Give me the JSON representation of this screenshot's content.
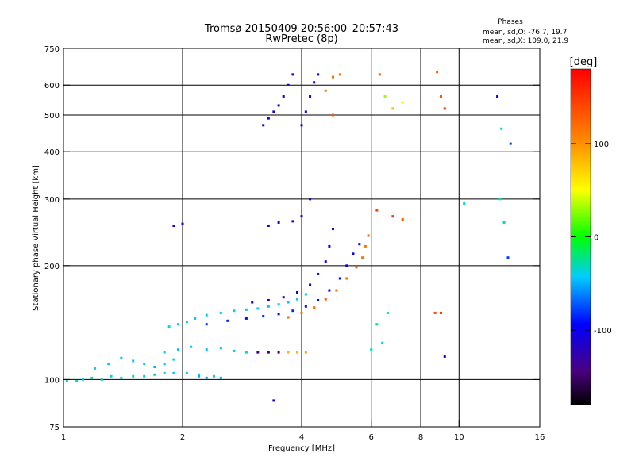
{
  "chart_data": {
    "type": "scatter",
    "title": "Tromsø 20150409 20:56:00–20:57:43",
    "subtitle": "RwPretec (8p)",
    "xlabel": "Frequency [MHz]",
    "ylabel": "Stationary phase Virtual Height [km]",
    "x_scale": "log",
    "y_scale": "log",
    "xlim": [
      1,
      16
    ],
    "ylim": [
      75,
      750
    ],
    "x_ticks": [
      1,
      2,
      4,
      6,
      8,
      10,
      16
    ],
    "x_tick_labels": [
      "1",
      "2",
      "4",
      "6",
      "8",
      "10",
      "16"
    ],
    "x_grid_lines": [
      2,
      4,
      6,
      8,
      10
    ],
    "y_ticks": [
      75,
      100,
      200,
      300,
      400,
      500,
      600,
      750
    ],
    "y_tick_labels": [
      "75",
      "100",
      "200",
      "300",
      "400",
      "500",
      "600",
      "750"
    ],
    "y_grid_lines": [
      100,
      200,
      300,
      400,
      500,
      600
    ],
    "grid": true,
    "info": {
      "heading": "Phases",
      "line1": "mean, sd,O: -76.7, 19.7",
      "line2": "mean, sd,X: 109.0, 21.9"
    },
    "colorbar": {
      "label": "[deg]",
      "min": -180,
      "max": 180,
      "ticks": [
        100,
        0,
        -100
      ],
      "tick_labels": [
        "100",
        "0",
        "-100"
      ],
      "colormap": "rainbow"
    },
    "series": [
      {
        "values": [
          [
            1.02,
            99,
            -35
          ],
          [
            1.08,
            99,
            -30
          ],
          [
            1.12,
            100,
            -40
          ],
          [
            1.18,
            101,
            -35
          ],
          [
            1.25,
            100,
            -30
          ],
          [
            1.32,
            102,
            -40
          ],
          [
            1.4,
            101,
            -35
          ],
          [
            1.5,
            102,
            -30
          ],
          [
            1.6,
            102,
            -40
          ],
          [
            1.7,
            103,
            -35
          ],
          [
            1.8,
            104,
            -35
          ],
          [
            1.9,
            104,
            -40
          ],
          [
            2.05,
            104,
            -35
          ],
          [
            2.2,
            103,
            -40
          ],
          [
            2.4,
            102,
            -35
          ],
          [
            1.2,
            107,
            -40
          ],
          [
            1.3,
            110,
            -45
          ],
          [
            1.4,
            114,
            -40
          ],
          [
            1.5,
            112,
            -45
          ],
          [
            1.6,
            110,
            -40
          ],
          [
            1.7,
            108,
            -50
          ],
          [
            1.8,
            110,
            -45
          ],
          [
            1.9,
            113,
            -40
          ],
          [
            1.85,
            138,
            -40
          ],
          [
            1.95,
            140,
            -45
          ],
          [
            2.05,
            142,
            -40
          ],
          [
            2.15,
            145,
            -45
          ],
          [
            2.3,
            148,
            -40
          ],
          [
            2.5,
            150,
            -45
          ],
          [
            2.7,
            152,
            -40
          ],
          [
            2.9,
            153,
            -45
          ],
          [
            3.1,
            154,
            -40
          ],
          [
            3.3,
            156,
            -45
          ],
          [
            3.5,
            158,
            -40
          ],
          [
            3.7,
            160,
            -45
          ],
          [
            3.9,
            163,
            -40
          ],
          [
            4.1,
            168,
            -45
          ],
          [
            1.8,
            118,
            -40
          ],
          [
            1.95,
            120,
            -45
          ],
          [
            2.1,
            122,
            -40
          ],
          [
            2.3,
            120,
            -45
          ],
          [
            2.5,
            121,
            -40
          ],
          [
            2.7,
            119,
            -45
          ],
          [
            2.9,
            118,
            -40
          ],
          [
            2.2,
            102,
            -50
          ],
          [
            2.3,
            101,
            -55
          ],
          [
            2.5,
            101,
            -55
          ],
          [
            2.3,
            140,
            -80
          ],
          [
            2.6,
            143,
            -85
          ],
          [
            2.9,
            145,
            -90
          ],
          [
            3.2,
            147,
            -85
          ],
          [
            3.5,
            149,
            -90
          ],
          [
            3.8,
            152,
            -85
          ],
          [
            4.1,
            156,
            -90
          ],
          [
            4.4,
            162,
            -95
          ],
          [
            4.7,
            172,
            -100
          ],
          [
            5.0,
            185,
            -95
          ],
          [
            5.2,
            200,
            -100
          ],
          [
            5.4,
            215,
            -100
          ],
          [
            5.6,
            228,
            -95
          ],
          [
            3.0,
            160,
            -100
          ],
          [
            3.3,
            162,
            -100
          ],
          [
            3.6,
            165,
            -110
          ],
          [
            3.9,
            170,
            -100
          ],
          [
            4.2,
            178,
            -110
          ],
          [
            4.4,
            190,
            -100
          ],
          [
            4.6,
            205,
            -105
          ],
          [
            4.7,
            225,
            -100
          ],
          [
            4.8,
            250,
            -110
          ],
          [
            3.3,
            255,
            -110
          ],
          [
            3.5,
            260,
            -115
          ],
          [
            3.8,
            262,
            -110
          ],
          [
            4.0,
            270,
            -120
          ],
          [
            4.2,
            300,
            -110
          ],
          [
            3.7,
            146,
            120
          ],
          [
            4.0,
            150,
            115
          ],
          [
            4.3,
            155,
            120
          ],
          [
            4.6,
            163,
            125
          ],
          [
            4.9,
            172,
            120
          ],
          [
            5.2,
            185,
            125
          ],
          [
            5.5,
            198,
            120
          ],
          [
            5.7,
            210,
            118
          ],
          [
            5.8,
            225,
            115
          ],
          [
            5.9,
            240,
            125
          ],
          [
            3.1,
            118,
            -140
          ],
          [
            3.3,
            118,
            -140
          ],
          [
            3.5,
            118,
            -145
          ],
          [
            3.7,
            118,
            80
          ],
          [
            3.9,
            118,
            85
          ],
          [
            4.1,
            118,
            90
          ],
          [
            3.2,
            470,
            -110
          ],
          [
            3.3,
            490,
            -105
          ],
          [
            3.4,
            510,
            -110
          ],
          [
            3.5,
            530,
            -105
          ],
          [
            3.6,
            560,
            -110
          ],
          [
            3.7,
            600,
            -115
          ],
          [
            3.8,
            640,
            -110
          ],
          [
            4.0,
            470,
            -105
          ],
          [
            4.1,
            510,
            -110
          ],
          [
            4.2,
            560,
            -105
          ],
          [
            4.3,
            610,
            -110
          ],
          [
            4.4,
            640,
            -105
          ],
          [
            4.6,
            580,
            110
          ],
          [
            4.8,
            630,
            120
          ],
          [
            5.0,
            640,
            115
          ],
          [
            4.8,
            500,
            125
          ],
          [
            6.3,
            640,
            130
          ],
          [
            6.5,
            560,
            30
          ],
          [
            6.8,
            520,
            80
          ],
          [
            7.2,
            540,
            60
          ],
          [
            8.8,
            650,
            130
          ],
          [
            9.0,
            560,
            130
          ],
          [
            9.2,
            520,
            150
          ],
          [
            12.5,
            560,
            -100
          ],
          [
            12.8,
            460,
            -30
          ],
          [
            13.5,
            420,
            -80
          ],
          [
            6.2,
            280,
            140
          ],
          [
            6.8,
            270,
            150
          ],
          [
            7.2,
            265,
            130
          ],
          [
            8.7,
            150,
            140
          ],
          [
            9.0,
            150,
            150
          ],
          [
            9.2,
            115,
            -100
          ],
          [
            10.3,
            292,
            -40
          ],
          [
            12.7,
            300,
            -30
          ],
          [
            13.0,
            260,
            -30
          ],
          [
            13.3,
            210,
            -80
          ],
          [
            6.0,
            120,
            -30
          ],
          [
            6.2,
            140,
            -20
          ],
          [
            6.4,
            125,
            -40
          ],
          [
            6.6,
            150,
            -30
          ],
          [
            3.4,
            88,
            -110
          ],
          [
            1.9,
            255,
            -110
          ],
          [
            2.0,
            258,
            -100
          ]
        ]
      }
    ]
  }
}
